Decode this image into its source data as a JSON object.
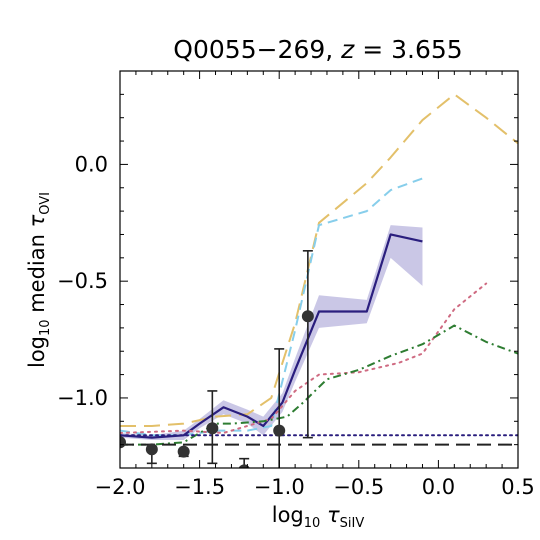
{
  "chart_data": {
    "type": "line",
    "title": "Q0055−269, z = 3.655",
    "title_parts": {
      "name": "Q0055−269, ",
      "var": "z",
      "value": " = 3.655"
    },
    "xlabel": {
      "prefix": "log",
      "sub10": "10",
      "tau": " τ",
      "sub": "SiIV"
    },
    "ylabel": {
      "prefix": "log",
      "sub10": "10",
      "mid": " median ",
      "tau": "τ",
      "sub": "OVI"
    },
    "xlim": [
      -2.0,
      0.5
    ],
    "ylim": [
      -1.3,
      0.4
    ],
    "x_ticks": [
      -2.0,
      -1.5,
      -1.0,
      -0.5,
      0.0,
      0.5
    ],
    "x_tick_labels": [
      "−2.0",
      "−1.5",
      "−1.0",
      "−0.5",
      "0.0",
      "0.5"
    ],
    "y_ticks": [
      -1.0,
      -0.5,
      0.0
    ],
    "y_tick_labels": [
      "−1.0",
      "−0.5",
      "0.0"
    ],
    "grid": false,
    "legend": "none",
    "series": [
      {
        "style": "long-dash",
        "color": "#e3c06a",
        "x": [
          -2.0,
          -1.8,
          -1.6,
          -1.4,
          -1.2,
          -1.05,
          -0.9,
          -0.75,
          -0.45,
          -0.3,
          -0.1,
          0.1,
          0.3,
          0.5
        ],
        "y": [
          -1.12,
          -1.12,
          -1.11,
          -1.08,
          -1.07,
          -1.0,
          -0.68,
          -0.25,
          -0.08,
          0.03,
          0.19,
          0.3,
          0.2,
          0.09
        ]
      },
      {
        "style": "dash",
        "color": "#87ceeb",
        "x": [
          -2.0,
          -1.8,
          -1.6,
          -1.4,
          -1.2,
          -1.05,
          -0.9,
          -0.75,
          -0.45,
          -0.3,
          -0.1
        ],
        "y": [
          -1.14,
          -1.16,
          -1.16,
          -1.14,
          -1.14,
          -1.12,
          -0.71,
          -0.26,
          -0.2,
          -0.11,
          -0.06
        ]
      },
      {
        "style": "solid",
        "color": "#2a1e7e",
        "x": [
          -2.0,
          -1.8,
          -1.6,
          -1.5,
          -1.35,
          -1.2,
          -1.1,
          -0.98,
          -0.9,
          -0.75,
          -0.45,
          -0.3,
          -0.1
        ],
        "y": [
          -1.16,
          -1.17,
          -1.16,
          -1.11,
          -1.04,
          -1.08,
          -1.12,
          -1.02,
          -0.88,
          -0.63,
          -0.63,
          -0.3,
          -0.33
        ],
        "band_lower": [
          -1.17,
          -1.18,
          -1.18,
          -1.13,
          -1.07,
          -1.11,
          -1.16,
          -1.06,
          -0.93,
          -0.7,
          -0.68,
          -0.4,
          -0.52
        ],
        "band_upper": [
          -1.15,
          -1.16,
          -1.14,
          -1.09,
          -1.01,
          -1.05,
          -1.08,
          -0.98,
          -0.83,
          -0.56,
          -0.58,
          -0.26,
          -0.27
        ],
        "band_color": "#8a82c8"
      },
      {
        "style": "dotted",
        "color": "#cf6b82",
        "x": [
          -2.0,
          -1.6,
          -1.35,
          -1.05,
          -0.9,
          -0.75,
          -0.5,
          -0.25,
          -0.1,
          0.1,
          0.3
        ],
        "y": [
          -1.15,
          -1.14,
          -1.15,
          -1.09,
          -0.97,
          -0.9,
          -0.89,
          -0.85,
          -0.81,
          -0.62,
          -0.51
        ]
      },
      {
        "style": "dash-dot",
        "color": "#2e7d32",
        "x": [
          -2.0,
          -1.8,
          -1.6,
          -1.4,
          -1.3,
          -1.1,
          -0.95,
          -0.85,
          -0.7,
          -0.5,
          -0.3,
          -0.1,
          0.1,
          0.3,
          0.5
        ],
        "y": [
          -1.2,
          -1.2,
          -1.19,
          -1.11,
          -1.11,
          -1.1,
          -1.08,
          -1.02,
          -0.92,
          -0.88,
          -0.82,
          -0.77,
          -0.69,
          -0.76,
          -0.81
        ]
      },
      {
        "style": "hline-dotted",
        "color": "#2a1e7e",
        "y": -1.16
      },
      {
        "style": "hline-dashed",
        "color": "#222222",
        "y": -1.2
      }
    ],
    "points": {
      "color": "#333333",
      "x": [
        -2.0,
        -1.8,
        -1.6,
        -1.42,
        -1.22,
        -1.0,
        -0.82
      ],
      "y": [
        -1.19,
        -1.22,
        -1.23,
        -1.13,
        -1.31,
        -1.14,
        -0.65
      ],
      "yerr_low": [
        0.0,
        0.06,
        0.02,
        0.15,
        0.0,
        0.4,
        0.52
      ],
      "yerr_high": [
        0.0,
        0.0,
        0.0,
        0.16,
        0.05,
        0.35,
        0.28
      ]
    }
  }
}
